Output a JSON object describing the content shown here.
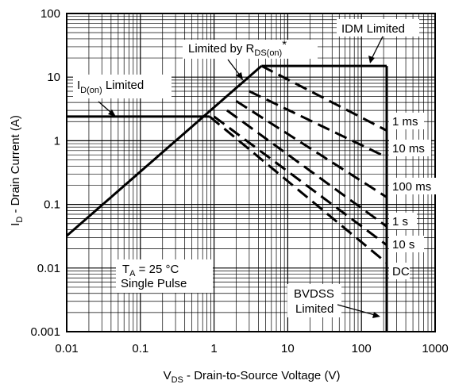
{
  "chart_data": {
    "type": "line",
    "x_scale": "log",
    "y_scale": "log",
    "xlim": [
      0.01,
      1000
    ],
    "ylim": [
      0.001,
      100
    ],
    "grid": true,
    "xlabel": {
      "main": "V",
      "sub": "DS",
      "rest": " - Drain-to-Source Voltage (V)"
    },
    "ylabel": {
      "main": "I",
      "sub": "D",
      "rest": " - Drain Current (A)"
    },
    "x_ticks": [
      {
        "value": 0.01,
        "label": "0.01"
      },
      {
        "value": 0.1,
        "label": "0.1"
      },
      {
        "value": 1,
        "label": "1"
      },
      {
        "value": 10,
        "label": "10"
      },
      {
        "value": 100,
        "label": "100"
      },
      {
        "value": 1000,
        "label": "1000"
      }
    ],
    "y_ticks": [
      {
        "value": 100,
        "label": "100"
      },
      {
        "value": 10,
        "label": "10"
      },
      {
        "value": 1,
        "label": "1"
      },
      {
        "value": 0.1,
        "label": "0.1"
      },
      {
        "value": 0.01,
        "label": "0.01"
      },
      {
        "value": 0.001,
        "label": "0.001"
      }
    ],
    "limits": [
      {
        "name": "rds_on_limit",
        "style": "solid",
        "points": [
          [
            0.01,
            0.032
          ],
          [
            4.4,
            15
          ]
        ]
      },
      {
        "name": "id_on_limit",
        "style": "solid",
        "points": [
          [
            0.01,
            2.4
          ],
          [
            0.87,
            2.4
          ]
        ]
      },
      {
        "name": "idm_limit",
        "style": "solid",
        "points": [
          [
            4.4,
            15
          ],
          [
            220,
            15
          ]
        ]
      },
      {
        "name": "bvdss_limit",
        "style": "solid",
        "points": [
          [
            220,
            15
          ],
          [
            220,
            0.001
          ]
        ]
      }
    ],
    "series": [
      {
        "name": "1 ms",
        "style": "dashed",
        "points": [
          [
            4.4,
            15
          ],
          [
            220,
            1.45
          ]
        ]
      },
      {
        "name": "10 ms",
        "style": "dashed",
        "points": [
          [
            3.0,
            6.0
          ],
          [
            220,
            0.55
          ]
        ]
      },
      {
        "name": "100 ms",
        "style": "dashed",
        "points": [
          [
            2.0,
            4.2
          ],
          [
            220,
            0.13
          ]
        ]
      },
      {
        "name": "1 s",
        "style": "dashed",
        "points": [
          [
            1.5,
            3.0
          ],
          [
            220,
            0.045
          ]
        ]
      },
      {
        "name": "10 s",
        "style": "dashed",
        "points": [
          [
            1.0,
            2.4
          ],
          [
            220,
            0.023
          ]
        ]
      },
      {
        "name": "DC",
        "style": "dashed",
        "points": [
          [
            0.87,
            2.4
          ],
          [
            220,
            0.012
          ]
        ]
      }
    ],
    "annotations": {
      "idm_limited": "IDM Limited",
      "rds_limited": {
        "main": "Limited by R",
        "sub": "DS(on)",
        "suffix": "*"
      },
      "id_on_limited": {
        "main": "I",
        "sub": "D(on)",
        "suffix": " Limited"
      },
      "series_labels": [
        "1 ms",
        "10 ms",
        "100 ms",
        "1 s",
        "10 s",
        "DC"
      ],
      "condition_temp": {
        "main": "T",
        "sub": "A",
        "rest": " = 25 °C"
      },
      "condition_pulse": "Single Pulse",
      "bvdss_line1": "BVDSS",
      "bvdss_line2": "Limited"
    }
  }
}
